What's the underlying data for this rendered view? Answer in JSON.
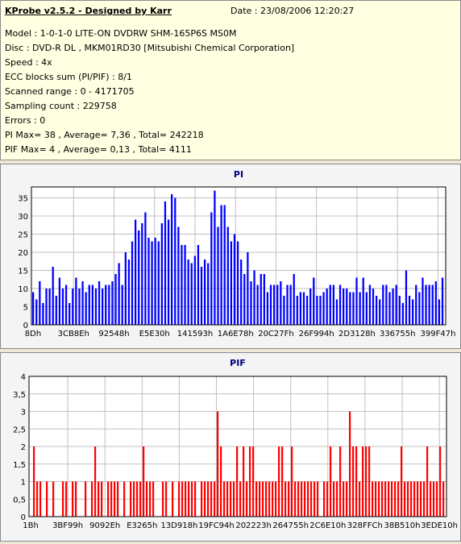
{
  "app_title": "KProbe v2.5.2 - Designed by Karr",
  "date_text": "Date : 23/08/2006 12:20:27",
  "info_lines": [
    "Model : 1-0-1-0 LITE-ON DVDRW SHM-165P6S MS0M",
    "Disc : DVD-R DL , MKM01RD30 [Mitsubishi Chemical Corporation]",
    "Speed : 4x",
    "ECC blocks sum (PI/PIF) : 8/1",
    "Scanned range : 0 - 4171705",
    "Sampling count : 229758",
    "Errors : 0",
    "PI Max= 38 , Average= 7,36 , Total= 242218",
    "PIF Max= 4 , Average= 0,13 , Total= 4111"
  ],
  "colors": {
    "pi": "#0000ff",
    "pif": "#ff0000",
    "title": "#000080",
    "plot_bg": "#ffffff",
    "grid": "#c0c0c0"
  },
  "chart_data": [
    {
      "type": "bar",
      "title": "PI",
      "xlabel": "",
      "ylabel": "",
      "ylim": [
        0,
        38
      ],
      "yticks": [
        0,
        5,
        10,
        15,
        20,
        25,
        30,
        35
      ],
      "xtick_labels": [
        "8Dh",
        "3CB8Eh",
        "92548h",
        "E5E30h",
        "141593h",
        "1A6E78h",
        "20C27Fh",
        "26F994h",
        "2D3128h",
        "336755h",
        "399F47h"
      ],
      "grid": true,
      "series": [
        {
          "values": [
            9,
            7,
            12,
            6,
            10,
            10,
            16,
            8,
            13,
            10,
            11,
            6,
            10,
            13,
            10,
            12,
            9,
            11,
            11,
            10,
            12,
            10,
            11,
            11,
            12,
            14,
            17,
            11,
            20,
            18,
            23,
            29,
            26,
            28,
            31,
            24,
            23,
            24,
            23,
            28,
            34,
            29,
            36,
            35,
            27,
            22,
            22,
            18,
            17,
            19,
            22,
            16,
            18,
            17,
            31,
            37,
            27,
            33,
            33,
            27,
            23,
            25,
            23,
            18,
            14,
            20,
            12,
            15,
            11,
            14,
            14,
            9,
            11,
            11,
            11,
            12,
            8,
            11,
            11,
            14,
            8,
            9,
            9,
            8,
            10,
            13,
            8,
            8,
            9,
            10,
            11,
            11,
            7,
            11,
            10,
            10,
            9,
            9,
            13,
            9,
            13,
            9,
            11,
            10,
            8,
            7,
            11,
            11,
            9,
            10,
            11,
            8,
            6,
            15,
            8,
            7,
            11,
            9,
            13,
            11,
            11,
            11,
            12,
            7,
            13
          ]
        }
      ]
    },
    {
      "type": "bar",
      "title": "PIF",
      "xlabel": "",
      "ylabel": "",
      "ylim": [
        0,
        4
      ],
      "yticks": [
        0,
        0.5,
        1,
        1.5,
        2,
        2.5,
        3,
        3.5,
        4
      ],
      "ytick_labels": [
        "0",
        "0,5",
        "1",
        "1,5",
        "2",
        "2,5",
        "3",
        "3,5",
        "4"
      ],
      "xtick_labels": [
        "1Bh",
        "3BF99h",
        "9092Eh",
        "E3265h",
        "13D918h",
        "19FC94h",
        "202223h",
        "264755h",
        "2C6E10h",
        "328FFCh",
        "38B510h",
        "3EDE10h"
      ],
      "grid": true,
      "series": [
        {
          "values": [
            0,
            2,
            1,
            1,
            0,
            1,
            0,
            1,
            0,
            0,
            1,
            1,
            0,
            1,
            1,
            0,
            0,
            1,
            0,
            1,
            2,
            1,
            1,
            0,
            1,
            1,
            1,
            1,
            0,
            1,
            0,
            1,
            1,
            1,
            1,
            2,
            1,
            1,
            1,
            0,
            0,
            1,
            1,
            0,
            1,
            0,
            1,
            1,
            1,
            1,
            1,
            1,
            0,
            1,
            1,
            1,
            1,
            1,
            3,
            2,
            1,
            1,
            1,
            1,
            2,
            1,
            2,
            1,
            2,
            2,
            1,
            1,
            1,
            1,
            1,
            1,
            1,
            2,
            2,
            1,
            1,
            2,
            1,
            1,
            1,
            1,
            1,
            1,
            1,
            1,
            0,
            1,
            1,
            2,
            1,
            1,
            2,
            1,
            1,
            3,
            2,
            2,
            1,
            2,
            2,
            2,
            1,
            1,
            1,
            1,
            1,
            1,
            1,
            1,
            1,
            2,
            1,
            1,
            1,
            1,
            1,
            1,
            1,
            2,
            1,
            1,
            1,
            2,
            1
          ]
        }
      ]
    }
  ]
}
